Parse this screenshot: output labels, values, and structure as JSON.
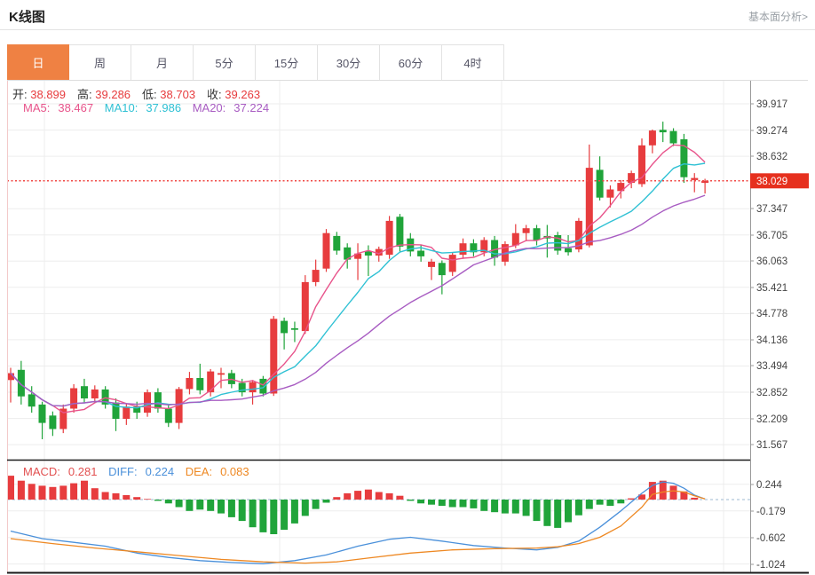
{
  "header": {
    "title": "K线图",
    "link_label": "基本面分析>"
  },
  "tabs": [
    {
      "name": "day",
      "label": "日",
      "active": true
    },
    {
      "name": "week",
      "label": "周",
      "active": false
    },
    {
      "name": "month",
      "label": "月",
      "active": false
    },
    {
      "name": "5min",
      "label": "5分",
      "active": false
    },
    {
      "name": "15min",
      "label": "15分",
      "active": false
    },
    {
      "name": "30min",
      "label": "30分",
      "active": false
    },
    {
      "name": "60min",
      "label": "60分",
      "active": false
    },
    {
      "name": "4hour",
      "label": "4时",
      "active": false
    }
  ],
  "ohlc": {
    "open_label": "开:",
    "open": "38.899",
    "high_label": "高:",
    "high": "39.286",
    "low_label": "低:",
    "low": "38.703",
    "close_label": "收:",
    "close": "39.263"
  },
  "ma": {
    "ma5_label": "MA5:",
    "ma5": "38.467",
    "ma10_label": "MA10:",
    "ma10": "37.986",
    "ma20_label": "MA20:",
    "ma20": "37.224"
  },
  "macd_info": {
    "macd_label": "MACD:",
    "macd": "0.281",
    "diff_label": "DIFF:",
    "diff": "0.224",
    "dea_label": "DEA:",
    "dea": "0.083"
  },
  "colors": {
    "up": "#e73c3e",
    "down": "#20a43a",
    "ma5": "#e8548b",
    "ma10": "#2fc1d4",
    "ma20": "#a85cc2",
    "diff": "#4a90da",
    "dea": "#ee8822",
    "tab_accent": "#ef8143",
    "price_tag_bg": "#e6301e",
    "price_tag_text": "#ffffff",
    "dotted_line": "#f04946",
    "zero_line": "#9db8d2",
    "grid": "#ededed",
    "axis": "#999999",
    "panel_border": "#1a1a1a",
    "label_text": "#444444",
    "macd_text": "#e25050"
  },
  "chart_data": {
    "type": "candlestick+macd",
    "title": "K线图 daily candlestick with MA5/MA10/MA20 and MACD",
    "price_ticks": [
      "39.917",
      "39.274",
      "38.632",
      "37.347",
      "36.705",
      "36.063",
      "35.421",
      "34.778",
      "34.136",
      "33.494",
      "32.852",
      "32.209",
      "31.567"
    ],
    "last_price": 38.029,
    "last_price_label": "38.029",
    "price_tick_step": 0.6423,
    "ma_periods": [
      5,
      10,
      20
    ],
    "candles": [
      [
        33.15,
        33.45,
        32.6,
        33.32
      ],
      [
        33.4,
        33.62,
        32.55,
        32.75
      ],
      [
        32.8,
        33.0,
        32.35,
        32.5
      ],
      [
        32.55,
        32.62,
        31.7,
        32.1
      ],
      [
        32.28,
        32.38,
        31.78,
        31.95
      ],
      [
        31.95,
        32.55,
        31.85,
        32.45
      ],
      [
        32.45,
        33.05,
        32.35,
        32.95
      ],
      [
        33.0,
        33.18,
        32.6,
        32.7
      ],
      [
        32.7,
        33.02,
        32.58,
        32.92
      ],
      [
        32.92,
        33.0,
        32.45,
        32.55
      ],
      [
        32.6,
        32.7,
        31.9,
        32.2
      ],
      [
        32.2,
        32.58,
        32.05,
        32.5
      ],
      [
        32.5,
        32.62,
        32.2,
        32.35
      ],
      [
        32.35,
        32.92,
        32.25,
        32.85
      ],
      [
        32.85,
        32.95,
        32.35,
        32.45
      ],
      [
        32.45,
        32.55,
        32.0,
        32.1
      ],
      [
        32.1,
        32.98,
        31.95,
        32.93
      ],
      [
        32.93,
        33.35,
        32.8,
        33.2
      ],
      [
        33.2,
        33.55,
        32.8,
        32.9
      ],
      [
        32.85,
        33.42,
        32.75,
        33.36
      ],
      [
        33.28,
        33.45,
        32.95,
        33.32
      ],
      [
        33.32,
        33.4,
        32.95,
        33.05
      ],
      [
        33.08,
        33.18,
        32.75,
        32.85
      ],
      [
        32.85,
        33.15,
        32.55,
        33.1
      ],
      [
        33.18,
        33.25,
        32.75,
        32.82
      ],
      [
        32.82,
        34.72,
        32.76,
        34.65
      ],
      [
        34.6,
        34.68,
        33.9,
        34.3
      ],
      [
        34.42,
        34.58,
        34.08,
        34.38
      ],
      [
        34.35,
        35.72,
        34.28,
        35.55
      ],
      [
        35.55,
        36.1,
        35.45,
        35.85
      ],
      [
        35.88,
        36.85,
        35.8,
        36.75
      ],
      [
        36.68,
        36.78,
        36.22,
        36.32
      ],
      [
        36.4,
        36.5,
        35.88,
        36.1
      ],
      [
        36.12,
        36.5,
        35.6,
        36.25
      ],
      [
        36.3,
        36.45,
        35.7,
        36.2
      ],
      [
        36.2,
        36.42,
        36.05,
        36.36
      ],
      [
        36.22,
        37.17,
        36.12,
        37.05
      ],
      [
        37.15,
        37.22,
        36.3,
        36.42
      ],
      [
        36.62,
        36.75,
        36.18,
        36.3
      ],
      [
        36.32,
        36.45,
        36.05,
        36.18
      ],
      [
        35.92,
        36.12,
        35.6,
        36.05
      ],
      [
        36.02,
        36.08,
        35.25,
        35.72
      ],
      [
        35.8,
        36.28,
        35.7,
        36.22
      ],
      [
        36.22,
        36.62,
        36.12,
        36.5
      ],
      [
        36.5,
        36.6,
        36.18,
        36.28
      ],
      [
        36.28,
        36.65,
        36.18,
        36.58
      ],
      [
        36.58,
        36.68,
        35.95,
        36.15
      ],
      [
        36.05,
        36.55,
        35.95,
        36.48
      ],
      [
        36.45,
        36.97,
        36.38,
        36.75
      ],
      [
        36.75,
        36.95,
        36.55,
        36.87
      ],
      [
        36.87,
        36.95,
        36.45,
        36.58
      ],
      [
        36.68,
        36.95,
        36.15,
        36.62
      ],
      [
        36.7,
        36.78,
        36.22,
        36.32
      ],
      [
        36.38,
        36.7,
        36.2,
        36.28
      ],
      [
        36.35,
        37.12,
        36.28,
        37.05
      ],
      [
        36.45,
        38.92,
        36.4,
        38.35
      ],
      [
        38.3,
        38.63,
        37.55,
        37.62
      ],
      [
        37.62,
        37.92,
        37.38,
        37.82
      ],
      [
        37.78,
        38.05,
        37.6,
        37.98
      ],
      [
        37.98,
        38.28,
        37.85,
        38.22
      ],
      [
        37.95,
        39.07,
        37.88,
        38.9
      ],
      [
        38.899,
        39.286,
        38.703,
        39.263
      ],
      [
        39.28,
        39.48,
        38.98,
        39.22
      ],
      [
        39.25,
        39.32,
        38.88,
        38.95
      ],
      [
        39.05,
        39.18,
        37.98,
        38.12
      ],
      [
        38.05,
        38.22,
        37.75,
        38.1
      ],
      [
        37.98,
        38.08,
        37.72,
        38.029
      ]
    ],
    "macd": {
      "ticks": [
        "0.244",
        "-0.179",
        "-0.602",
        "-1.024"
      ],
      "bars": [
        0.38,
        0.3,
        0.25,
        0.22,
        0.2,
        0.22,
        0.26,
        0.3,
        0.18,
        0.12,
        0.1,
        0.07,
        0.04,
        0.01,
        -0.02,
        -0.06,
        -0.12,
        -0.18,
        -0.16,
        -0.18,
        -0.22,
        -0.28,
        -0.34,
        -0.44,
        -0.52,
        -0.55,
        -0.48,
        -0.38,
        -0.26,
        -0.15,
        -0.05,
        0.04,
        0.1,
        0.14,
        0.16,
        0.12,
        0.1,
        0.06,
        -0.02,
        -0.06,
        -0.08,
        -0.1,
        -0.12,
        -0.12,
        -0.14,
        -0.18,
        -0.2,
        -0.22,
        -0.22,
        -0.26,
        -0.34,
        -0.42,
        -0.45,
        -0.36,
        -0.25,
        -0.15,
        -0.08,
        -0.1,
        -0.06,
        0.02,
        0.08,
        0.28,
        0.3,
        0.22,
        0.13,
        0.03,
        0.0
      ],
      "diff_keyframes": [
        [
          0,
          -0.5
        ],
        [
          3,
          -0.62
        ],
        [
          6,
          -0.68
        ],
        [
          9,
          -0.74
        ],
        [
          12,
          -0.85
        ],
        [
          15,
          -0.92
        ],
        [
          18,
          -0.97
        ],
        [
          21,
          -1.0
        ],
        [
          24,
          -1.02
        ],
        [
          27,
          -0.97
        ],
        [
          30,
          -0.88
        ],
        [
          33,
          -0.74
        ],
        [
          36,
          -0.63
        ],
        [
          38,
          -0.6
        ],
        [
          41,
          -0.66
        ],
        [
          44,
          -0.73
        ],
        [
          47,
          -0.77
        ],
        [
          50,
          -0.8
        ],
        [
          52,
          -0.76
        ],
        [
          54,
          -0.66
        ],
        [
          56,
          -0.44
        ],
        [
          58,
          -0.18
        ],
        [
          60,
          0.1
        ],
        [
          61,
          0.224
        ],
        [
          62,
          0.28
        ],
        [
          63,
          0.26
        ],
        [
          64,
          0.18
        ],
        [
          65,
          0.07
        ],
        [
          66,
          0.01
        ]
      ],
      "dea_keyframes": [
        [
          0,
          -0.62
        ],
        [
          4,
          -0.7
        ],
        [
          8,
          -0.77
        ],
        [
          12,
          -0.83
        ],
        [
          16,
          -0.89
        ],
        [
          20,
          -0.95
        ],
        [
          24,
          -0.99
        ],
        [
          28,
          -1.01
        ],
        [
          31,
          -0.99
        ],
        [
          34,
          -0.93
        ],
        [
          38,
          -0.85
        ],
        [
          42,
          -0.8
        ],
        [
          46,
          -0.78
        ],
        [
          50,
          -0.77
        ],
        [
          52,
          -0.75
        ],
        [
          54,
          -0.7
        ],
        [
          56,
          -0.6
        ],
        [
          58,
          -0.42
        ],
        [
          60,
          -0.12
        ],
        [
          61,
          0.083
        ],
        [
          62,
          0.12
        ],
        [
          63,
          0.14
        ],
        [
          64,
          0.12
        ],
        [
          65,
          0.06
        ],
        [
          66,
          0.01
        ]
      ]
    }
  }
}
